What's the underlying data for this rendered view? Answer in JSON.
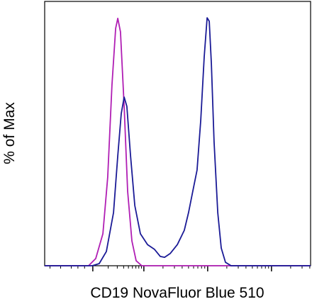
{
  "chart_data": {
    "type": "line",
    "ylabel": "% of Max",
    "xlabel": "CD19 NovaFluor Blue 510",
    "xlim": [
      0,
      100
    ],
    "ylim": [
      0,
      100
    ],
    "xticks": [
      18.1,
      37.3,
      61.3,
      85.3
    ],
    "xminorticks": [
      2,
      6,
      10,
      12.5,
      15,
      23.9,
      27.3,
      29.7,
      31.5,
      33.0,
      34.3,
      35.4,
      36.4,
      44.5,
      48.8,
      51.7,
      54.1,
      56.0,
      57.6,
      59.0,
      60.2,
      68.5,
      72.8,
      75.7,
      78.1,
      80.0,
      81.6,
      83.0,
      84.2,
      92.5,
      96.8,
      99.7
    ],
    "series": [
      {
        "color": "#b01eb4",
        "x": [
          0,
          16.5,
          19.2,
          21.9,
          23.7,
          25.3,
          26.7,
          27.5,
          28.5,
          29.9,
          31.2,
          32.8,
          34.4,
          36.5,
          100
        ],
        "values": [
          0,
          0,
          2.7,
          12.1,
          33.5,
          68.4,
          89.8,
          93.6,
          88.5,
          60.3,
          28.2,
          9.4,
          1.9,
          0,
          0
        ]
      },
      {
        "color": "#1a1a96",
        "x": [
          0,
          17.9,
          20.5,
          23.2,
          25.9,
          27.5,
          28.8,
          29.9,
          30.9,
          32.3,
          33.9,
          36,
          38.7,
          41.3,
          43.5,
          45.1,
          47.2,
          49.9,
          52.5,
          54.1,
          55.7,
          57.3,
          58.7,
          60,
          61.1,
          61.9,
          62.7,
          63.7,
          65.1,
          66.4,
          68,
          70.1,
          73.9,
          100
        ],
        "values": [
          0,
          0,
          0.8,
          5.4,
          20.1,
          41.6,
          57.6,
          63.8,
          60.3,
          41.6,
          22.8,
          12.1,
          8,
          6.2,
          3.5,
          3.2,
          4.6,
          8,
          13.4,
          20.1,
          28.2,
          36.2,
          55,
          79.1,
          93.8,
          92.5,
          76.4,
          46.9,
          20.1,
          6.7,
          1.3,
          0,
          0,
          0
        ]
      }
    ]
  }
}
